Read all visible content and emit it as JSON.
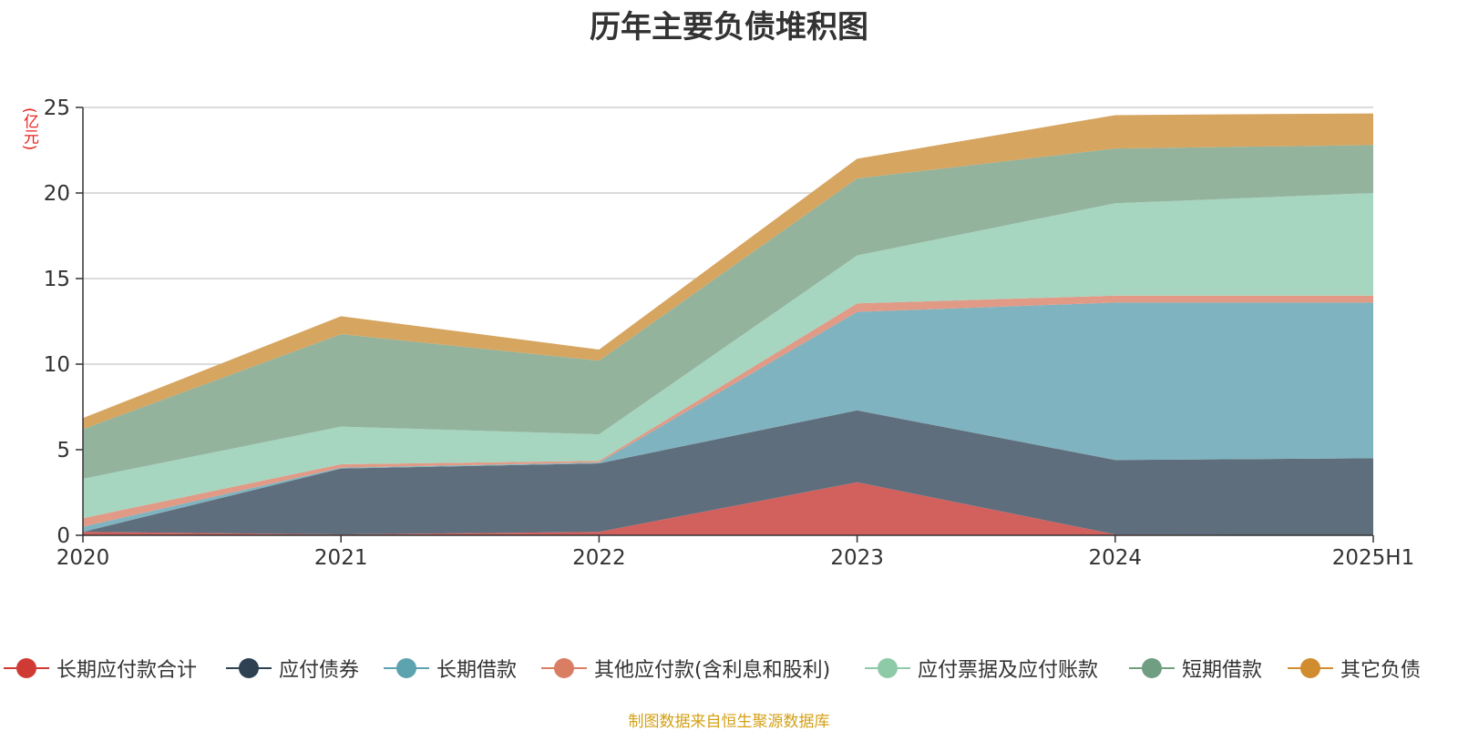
{
  "chart_data": {
    "type": "area",
    "stacked": true,
    "title": "历年主要负债堆积图",
    "unit_label": "(亿元)",
    "categories": [
      "2020",
      "2021",
      "2022",
      "2023",
      "2024",
      "2025H1"
    ],
    "y_ticks": [
      "0",
      "5",
      "10",
      "15",
      "20",
      "25"
    ],
    "ylim": [
      0,
      25
    ],
    "grid": true,
    "legend_position": "bottom",
    "series": [
      {
        "name": "长期应付款合计",
        "color": "#d2605d",
        "values": [
          0.2,
          0.05,
          0.2,
          3.1,
          0.05,
          0.0
        ]
      },
      {
        "name": "应付债券",
        "color": "#5f6e7c",
        "values": [
          0.0,
          3.85,
          4.0,
          4.2,
          4.35,
          4.5
        ]
      },
      {
        "name": "长期借款",
        "color": "#7fb3bf",
        "values": [
          0.3,
          0.05,
          0.05,
          5.75,
          9.2,
          9.1
        ]
      },
      {
        "name": "其他应付款(含利息和股利)",
        "color": "#e09a86",
        "values": [
          0.5,
          0.2,
          0.1,
          0.5,
          0.4,
          0.4
        ]
      },
      {
        "name": "应付票据及应付账款",
        "color": "#a6d5c0",
        "values": [
          2.3,
          2.2,
          1.55,
          2.8,
          5.4,
          6.0
        ]
      },
      {
        "name": "短期借款",
        "color": "#93b39d",
        "values": [
          2.9,
          5.4,
          4.3,
          4.5,
          3.2,
          2.8
        ]
      },
      {
        "name": "其它负债",
        "color": "#d6a560",
        "values": [
          0.65,
          1.05,
          0.65,
          1.15,
          1.95,
          1.85
        ]
      }
    ],
    "legend_colors": [
      "#d03a34",
      "#2d4152",
      "#5da3af",
      "#d97d63",
      "#8ecaa8",
      "#6f9e83",
      "#d08c2e"
    ]
  },
  "source_note": "制图数据来自恒生聚源数据库"
}
